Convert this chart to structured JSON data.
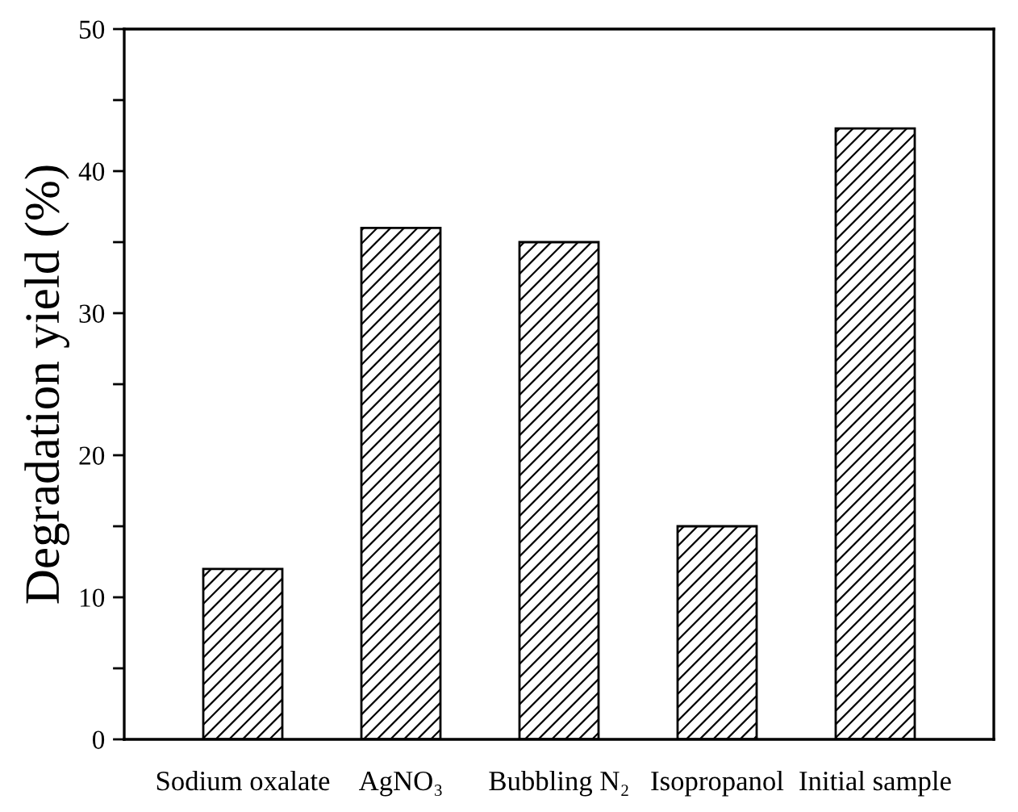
{
  "chart_data": {
    "type": "bar",
    "ylabel": "Degradation yield (%)",
    "categories": [
      "Sodium oxalate",
      "AgNO₃",
      "Bubbling N₂",
      "Isopropanol",
      "Initial sample"
    ],
    "values": [
      12,
      36,
      35,
      15,
      43
    ],
    "color": "#000000",
    "ylim": [
      0,
      50
    ],
    "yticks": [
      0,
      {
        "value": 5,
        "label": null
      },
      10,
      {
        "value": 15,
        "label": null
      },
      20,
      {
        "value": 25,
        "label": null
      },
      30,
      {
        "value": 35,
        "label": null
      },
      40,
      {
        "value": 45,
        "label": null
      },
      50
    ],
    "grid": false,
    "legend": false
  }
}
